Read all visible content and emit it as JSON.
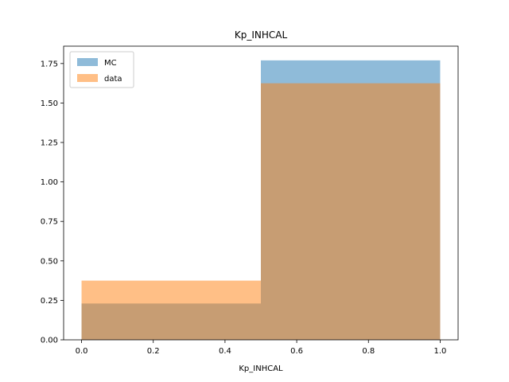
{
  "chart_data": {
    "type": "bar",
    "title": "Kp_INHCAL",
    "xlabel": "Kp_INHCAL",
    "ylabel": "",
    "bins": [
      [
        0.0,
        0.5
      ],
      [
        0.5,
        1.0
      ]
    ],
    "xlim": [
      -0.05,
      1.05
    ],
    "ylim": [
      0,
      1.86
    ],
    "xticks": [
      0.0,
      0.2,
      0.4,
      0.6,
      0.8,
      1.0
    ],
    "xtick_labels": [
      "0.0",
      "0.2",
      "0.4",
      "0.6",
      "0.8",
      "1.0"
    ],
    "yticks": [
      0.0,
      0.25,
      0.5,
      0.75,
      1.0,
      1.25,
      1.5,
      1.75
    ],
    "ytick_labels": [
      "0.00",
      "0.25",
      "0.50",
      "0.75",
      "1.00",
      "1.25",
      "1.50",
      "1.75"
    ],
    "series": [
      {
        "name": "MC",
        "values": [
          0.23,
          1.77
        ],
        "color": "#1f77b4",
        "alpha": 0.5
      },
      {
        "name": "data",
        "values": [
          0.375,
          1.625
        ],
        "color": "#ff7f0e",
        "alpha": 0.5
      }
    ],
    "legend": {
      "position": "top-left"
    },
    "grid": false
  }
}
